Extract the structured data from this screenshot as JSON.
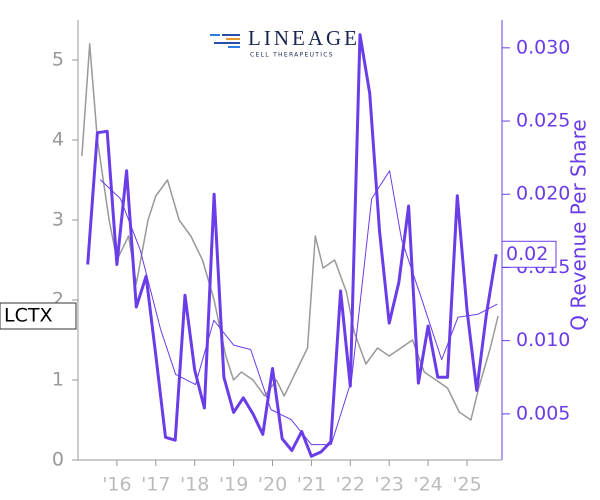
{
  "chart_data": {
    "type": "line",
    "logo": {
      "name": "LINEAGE",
      "tagline": "CELL THERAPEUTICS"
    },
    "y2label": "Q Revenue Per Share",
    "xlim": [
      2015,
      2025.9
    ],
    "xticks": [
      {
        "value": 2016,
        "label": "'16"
      },
      {
        "value": 2017,
        "label": "'17"
      },
      {
        "value": 2018,
        "label": "'18"
      },
      {
        "value": 2019,
        "label": "'19"
      },
      {
        "value": 2020,
        "label": "'20"
      },
      {
        "value": 2021,
        "label": "'21"
      },
      {
        "value": 2022,
        "label": "'22"
      },
      {
        "value": 2023,
        "label": "'23"
      },
      {
        "value": 2024,
        "label": "'24"
      },
      {
        "value": 2025,
        "label": "'25"
      }
    ],
    "ylim": [
      0,
      5.5
    ],
    "yticks": [
      0,
      1,
      2,
      3,
      4,
      5
    ],
    "y2lim": [
      0.00185,
      0.0319
    ],
    "y2ticks": [
      0.005,
      {
        "value": 0.01,
        "label": "0.010"
      },
      0.015,
      {
        "value": 0.02,
        "label": "0.020"
      },
      0.025,
      {
        "value": 0.03,
        "label": "0.030"
      }
    ],
    "series": [
      {
        "name": "LCTX",
        "color": "#999999",
        "width": 1.5,
        "x": [
          2015.1,
          2015.3,
          2015.5,
          2015.8,
          2016.0,
          2016.3,
          2016.5,
          2016.8,
          2017.0,
          2017.3,
          2017.6,
          2017.9,
          2018.2,
          2018.5,
          2018.8,
          2019.0,
          2019.2,
          2019.5,
          2019.8,
          2020.1,
          2020.3,
          2020.6,
          2020.9,
          2021.1,
          2021.3,
          2021.6,
          2021.9,
          2022.1,
          2022.4,
          2022.7,
          2023.0,
          2023.3,
          2023.6,
          2023.9,
          2024.2,
          2024.5,
          2024.8,
          2025.1,
          2025.3,
          2025.6,
          2025.8
        ],
        "values": [
          3.8,
          5.2,
          4.0,
          3.0,
          2.5,
          2.8,
          2.2,
          3.0,
          3.3,
          3.5,
          3.0,
          2.8,
          2.5,
          2.0,
          1.3,
          1.0,
          1.1,
          1.0,
          0.8,
          1.0,
          0.8,
          1.1,
          1.4,
          2.8,
          2.4,
          2.5,
          2.1,
          1.6,
          1.2,
          1.4,
          1.3,
          1.4,
          1.5,
          1.1,
          1.0,
          0.9,
          0.6,
          0.5,
          0.9,
          1.4,
          1.8
        ]
      },
      {
        "color": "#6a3de8",
        "width": 3,
        "axis": "y2",
        "tag": "0.02",
        "x": [
          2015.25,
          2015.5,
          2015.75,
          2016.0,
          2016.25,
          2016.5,
          2016.75,
          2017.0,
          2017.25,
          2017.5,
          2017.75,
          2018.0,
          2018.25,
          2018.5,
          2018.75,
          2019.0,
          2019.25,
          2019.5,
          2019.75,
          2020.0,
          2020.25,
          2020.5,
          2020.75,
          2021.0,
          2021.25,
          2021.5,
          2021.75,
          2022.0,
          2022.25,
          2022.5,
          2022.75,
          2023.0,
          2023.25,
          2023.5,
          2023.75,
          2024.0,
          2024.25,
          2024.5,
          2024.75,
          2025.0,
          2025.25,
          2025.5,
          2025.75
        ],
        "values": [
          0.0152,
          0.0242,
          0.0243,
          0.0152,
          0.0216,
          0.0123,
          0.0144,
          0.009,
          0.0034,
          0.0032,
          0.0131,
          0.008,
          0.0054,
          0.02,
          0.0075,
          0.0051,
          0.0061,
          0.005,
          0.0036,
          0.0081,
          0.0033,
          0.0025,
          0.0038,
          0.0021,
          0.0024,
          0.0031,
          0.0134,
          0.0069,
          0.0309,
          0.0269,
          0.0175,
          0.0112,
          0.014,
          0.0192,
          0.0071,
          0.011,
          0.0075,
          0.0075,
          0.0199,
          0.0121,
          0.0066,
          0.0118,
          0.0159
        ]
      },
      {
        "color": "#6a3de8",
        "width": 1,
        "axis": "y2",
        "x": [
          2015.57,
          2016.09,
          2016.6,
          2017.12,
          2017.51,
          2018.02,
          2018.49,
          2019.0,
          2019.44,
          2019.96,
          2020.48,
          2021.0,
          2021.51,
          2022.03,
          2022.55,
          2023.01,
          2023.32,
          2023.84,
          2024.35,
          2024.77,
          2025.28,
          2025.78
        ],
        "values": [
          0.021,
          0.0197,
          0.0162,
          0.0108,
          0.0077,
          0.007,
          0.0114,
          0.0097,
          0.0094,
          0.0053,
          0.0046,
          0.0029,
          0.0029,
          0.0073,
          0.0197,
          0.0216,
          0.0169,
          0.0128,
          0.0087,
          0.0116,
          0.0118,
          0.0125
        ]
      }
    ]
  }
}
